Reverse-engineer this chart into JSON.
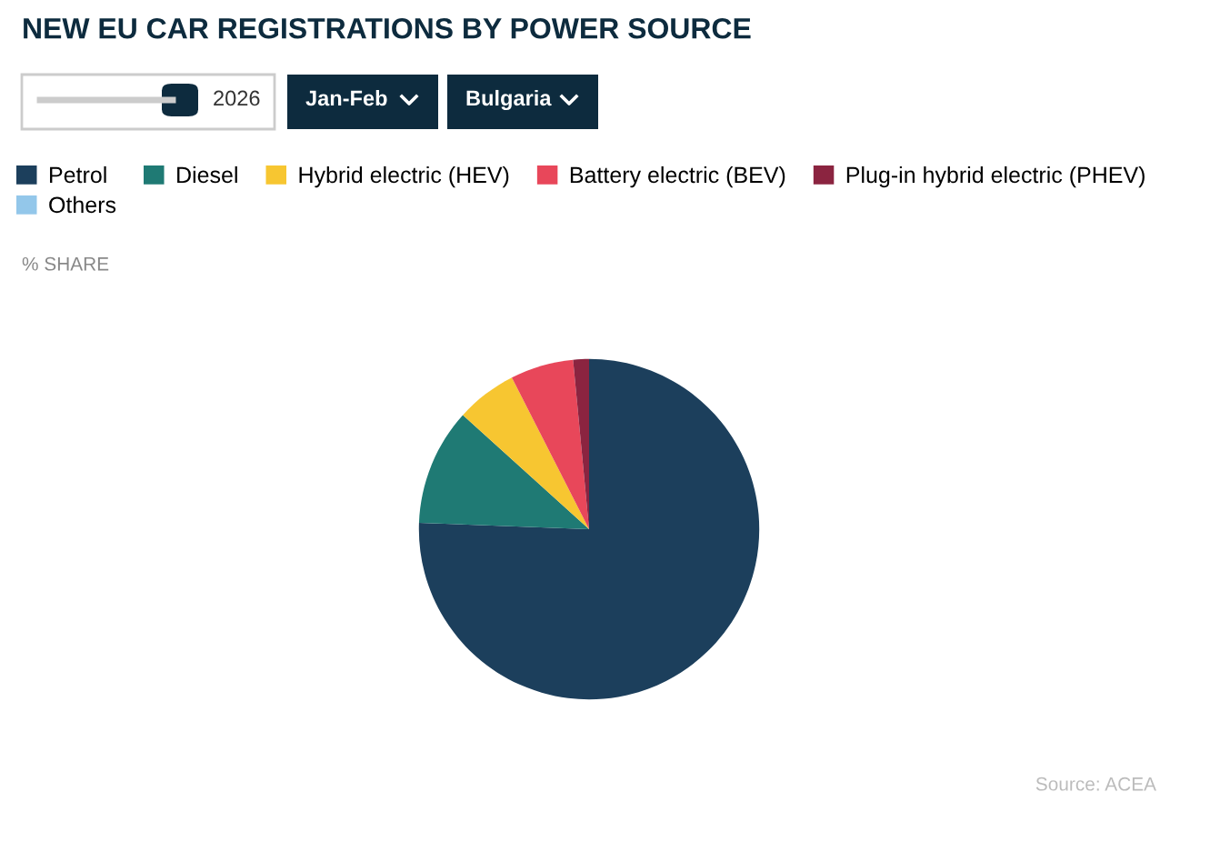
{
  "chart_data": {
    "type": "pie",
    "title": "NEW EU CAR REGISTRATIONS BY POWER SOURCE",
    "subtitle": "% SHARE",
    "categories": [
      "Petrol",
      "Diesel",
      "Hybrid electric (HEV)",
      "Battery electric (BEV)",
      "Plug-in hybrid electric (PHEV)",
      "Others"
    ],
    "values": [
      75.6,
      11.1,
      5.8,
      6.0,
      1.5,
      0
    ],
    "colors": [
      "#1c3f5c",
      "#1f7a74",
      "#f7c631",
      "#e8475a",
      "#8b2440",
      "#93c7ea"
    ],
    "legend": "top left",
    "annotations": [
      "2026",
      "Jan-Feb",
      "Bulgaria",
      "Source: ACEA"
    ]
  }
}
